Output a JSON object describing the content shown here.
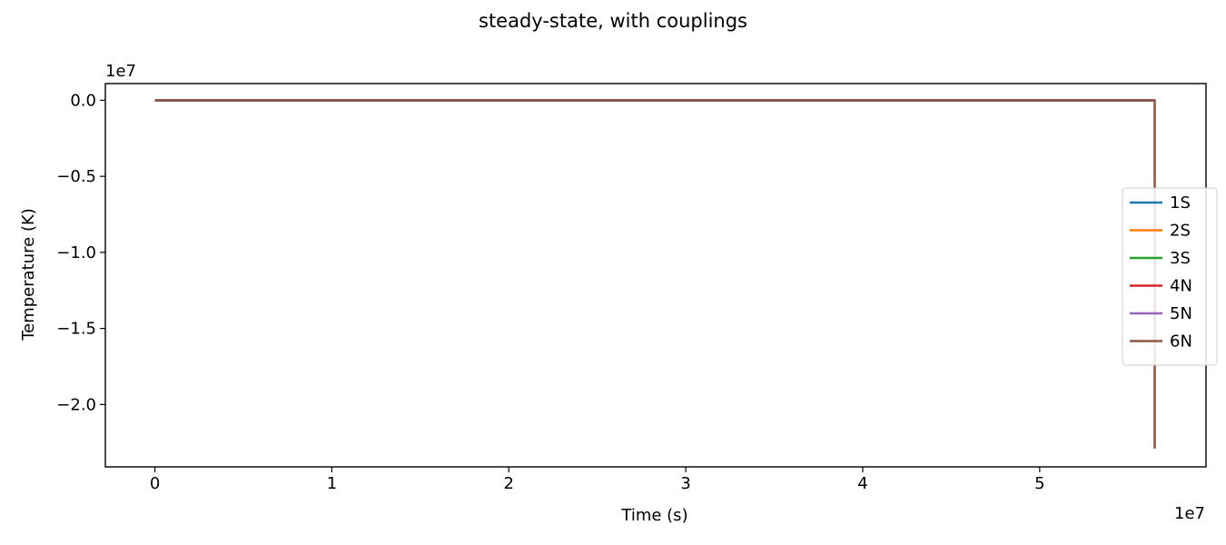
{
  "chart_data": {
    "type": "line",
    "title": "steady-state, with couplings",
    "xlabel": "Time (s)",
    "ylabel": "Temperature (K)",
    "x_offset_label": "1e7",
    "y_offset_label": "1e7",
    "xlim": [
      -2800000.0,
      59400000.0
    ],
    "ylim": [
      -24100000.0,
      1100000.0
    ],
    "x_ticks": [
      0,
      10000000.0,
      20000000.0,
      30000000.0,
      40000000.0,
      50000000.0
    ],
    "x_tick_labels": [
      "0",
      "1",
      "2",
      "3",
      "4",
      "5"
    ],
    "y_ticks": [
      0,
      -5000000.0,
      -10000000.0,
      -15000000.0,
      -20000000.0
    ],
    "y_tick_labels": [
      "0.0",
      "−0.5",
      "−1.0",
      "−1.5",
      "−2.0"
    ],
    "legend_position": "right",
    "series": [
      {
        "name": "1S",
        "color": "#1f77b4",
        "x": [
          0,
          56500000.0
        ],
        "y": [
          0,
          0
        ]
      },
      {
        "name": "2S",
        "color": "#ff7f0e",
        "x": [
          0,
          56500000.0
        ],
        "y": [
          0,
          0
        ]
      },
      {
        "name": "3S",
        "color": "#2ca02c",
        "x": [
          0,
          56500000.0
        ],
        "y": [
          0,
          0
        ]
      },
      {
        "name": "4N",
        "color": "#d62728",
        "x": [
          0,
          56500000.0
        ],
        "y": [
          0,
          0
        ]
      },
      {
        "name": "5N",
        "color": "#9467bd",
        "x": [
          0,
          56500000.0
        ],
        "y": [
          0,
          0
        ]
      },
      {
        "name": "6N",
        "color": "#8c564b",
        "x": [
          0,
          56500000.0,
          56500000.0
        ],
        "y": [
          0,
          0,
          -22900000.0
        ]
      }
    ]
  }
}
